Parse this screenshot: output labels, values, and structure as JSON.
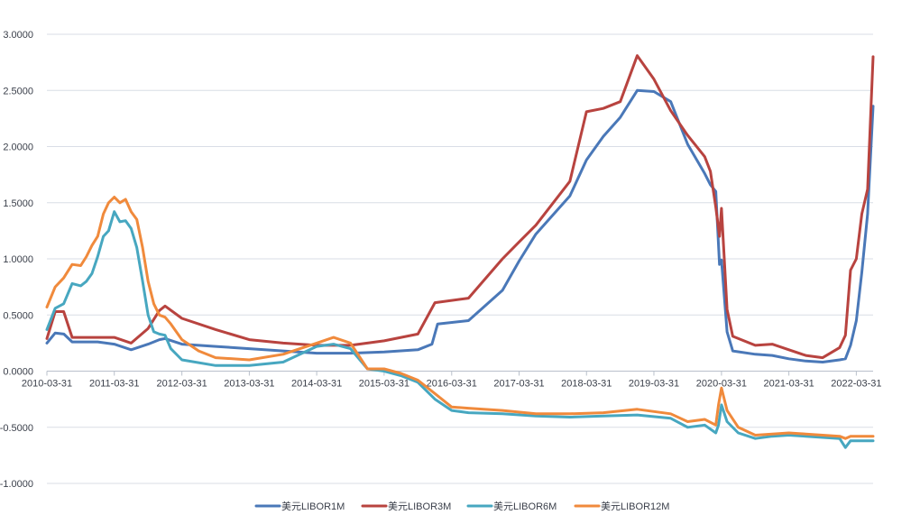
{
  "chart_data": {
    "type": "line",
    "title": "",
    "xlabel": "",
    "ylabel": "",
    "ylim": [
      -1.0,
      3.0
    ],
    "y_ticks": [
      "3.0000",
      "2.5000",
      "2.0000",
      "1.5000",
      "1.0000",
      "0.5000",
      "0.0000",
      "-0.5000",
      "-1.0000"
    ],
    "y_tick_values": [
      3.0,
      2.5,
      2.0,
      1.5,
      1.0,
      0.5,
      0.0,
      -0.5,
      -1.0
    ],
    "xlim": [
      "2010-03-31",
      "2022-06-30"
    ],
    "x_ticks": [
      "2010-03-31",
      "2011-03-31",
      "2012-03-31",
      "2013-03-31",
      "2014-03-31",
      "2015-03-31",
      "2016-03-31",
      "2017-03-31",
      "2018-03-31",
      "2019-03-31",
      "2020-03-31",
      "2021-03-31",
      "2022-03-31"
    ],
    "grid": "horizontal",
    "legend": "bottom",
    "series": [
      {
        "name": "美元LIBOR1M",
        "color": "#4a78b8",
        "points": [
          [
            "2010-03-31",
            0.25
          ],
          [
            "2010-05-15",
            0.34
          ],
          [
            "2010-07-01",
            0.33
          ],
          [
            "2010-08-15",
            0.26
          ],
          [
            "2010-12-31",
            0.26
          ],
          [
            "2011-03-31",
            0.24
          ],
          [
            "2011-06-30",
            0.19
          ],
          [
            "2011-09-30",
            0.24
          ],
          [
            "2011-10-31",
            0.26
          ],
          [
            "2011-11-30",
            0.28
          ],
          [
            "2011-12-31",
            0.29
          ],
          [
            "2012-03-31",
            0.24
          ],
          [
            "2012-09-30",
            0.22
          ],
          [
            "2013-03-31",
            0.2
          ],
          [
            "2013-09-30",
            0.18
          ],
          [
            "2014-03-31",
            0.16
          ],
          [
            "2014-09-30",
            0.16
          ],
          [
            "2015-03-31",
            0.17
          ],
          [
            "2015-09-30",
            0.19
          ],
          [
            "2015-12-15",
            0.24
          ],
          [
            "2016-01-15",
            0.42
          ],
          [
            "2016-06-30",
            0.45
          ],
          [
            "2016-12-31",
            0.72
          ],
          [
            "2017-03-31",
            0.98
          ],
          [
            "2017-06-30",
            1.22
          ],
          [
            "2017-12-31",
            1.56
          ],
          [
            "2018-03-31",
            1.88
          ],
          [
            "2018-06-30",
            2.09
          ],
          [
            "2018-09-30",
            2.26
          ],
          [
            "2018-12-31",
            2.5
          ],
          [
            "2019-03-31",
            2.49
          ],
          [
            "2019-06-30",
            2.4
          ],
          [
            "2019-09-30",
            2.02
          ],
          [
            "2019-12-31",
            1.76
          ],
          [
            "2020-01-31",
            1.66
          ],
          [
            "2020-02-29",
            1.6
          ],
          [
            "2020-03-20",
            0.95
          ],
          [
            "2020-03-31",
            0.99
          ],
          [
            "2020-04-30",
            0.35
          ],
          [
            "2020-05-31",
            0.18
          ],
          [
            "2020-09-30",
            0.15
          ],
          [
            "2020-12-31",
            0.14
          ],
          [
            "2021-03-31",
            0.11
          ],
          [
            "2021-06-30",
            0.09
          ],
          [
            "2021-09-30",
            0.08
          ],
          [
            "2021-12-31",
            0.1
          ],
          [
            "2022-01-31",
            0.11
          ],
          [
            "2022-02-28",
            0.23
          ],
          [
            "2022-03-31",
            0.45
          ],
          [
            "2022-04-30",
            0.88
          ],
          [
            "2022-05-31",
            1.4
          ],
          [
            "2022-06-30",
            2.36
          ]
        ]
      },
      {
        "name": "美元LIBOR3M",
        "color": "#b8433f",
        "points": [
          [
            "2010-03-31",
            0.29
          ],
          [
            "2010-05-15",
            0.53
          ],
          [
            "2010-06-30",
            0.53
          ],
          [
            "2010-08-15",
            0.3
          ],
          [
            "2010-12-31",
            0.3
          ],
          [
            "2011-03-31",
            0.3
          ],
          [
            "2011-06-30",
            0.25
          ],
          [
            "2011-09-30",
            0.38
          ],
          [
            "2011-11-30",
            0.54
          ],
          [
            "2011-12-31",
            0.58
          ],
          [
            "2012-03-31",
            0.47
          ],
          [
            "2012-09-30",
            0.37
          ],
          [
            "2013-03-31",
            0.28
          ],
          [
            "2013-09-30",
            0.25
          ],
          [
            "2014-03-31",
            0.23
          ],
          [
            "2014-09-30",
            0.23
          ],
          [
            "2015-03-31",
            0.27
          ],
          [
            "2015-09-30",
            0.33
          ],
          [
            "2015-12-31",
            0.61
          ],
          [
            "2016-06-30",
            0.65
          ],
          [
            "2016-12-31",
            1.0
          ],
          [
            "2017-03-31",
            1.15
          ],
          [
            "2017-06-30",
            1.3
          ],
          [
            "2017-12-31",
            1.69
          ],
          [
            "2018-03-31",
            2.31
          ],
          [
            "2018-06-30",
            2.34
          ],
          [
            "2018-09-30",
            2.4
          ],
          [
            "2018-12-31",
            2.81
          ],
          [
            "2019-03-31",
            2.6
          ],
          [
            "2019-06-30",
            2.32
          ],
          [
            "2019-09-30",
            2.1
          ],
          [
            "2019-12-31",
            1.91
          ],
          [
            "2020-01-31",
            1.78
          ],
          [
            "2020-02-29",
            1.46
          ],
          [
            "2020-03-20",
            1.2
          ],
          [
            "2020-03-31",
            1.45
          ],
          [
            "2020-04-30",
            0.55
          ],
          [
            "2020-05-31",
            0.31
          ],
          [
            "2020-09-30",
            0.23
          ],
          [
            "2020-12-31",
            0.24
          ],
          [
            "2021-03-31",
            0.19
          ],
          [
            "2021-06-30",
            0.14
          ],
          [
            "2021-09-30",
            0.12
          ],
          [
            "2021-12-31",
            0.21
          ],
          [
            "2022-01-31",
            0.32
          ],
          [
            "2022-02-28",
            0.9
          ],
          [
            "2022-03-31",
            1.0
          ],
          [
            "2022-04-30",
            1.4
          ],
          [
            "2022-05-31",
            1.62
          ],
          [
            "2022-06-30",
            2.8
          ]
        ]
      },
      {
        "name": "美元LIBOR6M",
        "color": "#47a7c0",
        "points": [
          [
            "2010-03-31",
            0.37
          ],
          [
            "2010-05-15",
            0.56
          ],
          [
            "2010-06-30",
            0.6
          ],
          [
            "2010-08-15",
            0.78
          ],
          [
            "2010-09-30",
            0.76
          ],
          [
            "2010-10-31",
            0.8
          ],
          [
            "2010-11-30",
            0.87
          ],
          [
            "2010-12-31",
            1.02
          ],
          [
            "2011-01-31",
            1.2
          ],
          [
            "2011-02-28",
            1.25
          ],
          [
            "2011-03-31",
            1.42
          ],
          [
            "2011-04-30",
            1.33
          ],
          [
            "2011-05-31",
            1.34
          ],
          [
            "2011-06-30",
            1.27
          ],
          [
            "2011-07-31",
            1.1
          ],
          [
            "2011-08-31",
            0.8
          ],
          [
            "2011-09-30",
            0.5
          ],
          [
            "2011-10-31",
            0.35
          ],
          [
            "2011-11-30",
            0.33
          ],
          [
            "2011-12-31",
            0.32
          ],
          [
            "2012-01-31",
            0.2
          ],
          [
            "2012-03-31",
            0.1
          ],
          [
            "2012-09-30",
            0.05
          ],
          [
            "2013-03-31",
            0.05
          ],
          [
            "2013-09-30",
            0.08
          ],
          [
            "2014-03-31",
            0.22
          ],
          [
            "2014-06-30",
            0.24
          ],
          [
            "2014-09-30",
            0.2
          ],
          [
            "2014-12-31",
            0.02
          ],
          [
            "2015-03-31",
            0.0
          ],
          [
            "2015-06-30",
            -0.04
          ],
          [
            "2015-09-30",
            -0.1
          ],
          [
            "2015-12-31",
            -0.25
          ],
          [
            "2016-03-31",
            -0.35
          ],
          [
            "2016-06-30",
            -0.37
          ],
          [
            "2016-12-31",
            -0.38
          ],
          [
            "2017-06-30",
            -0.4
          ],
          [
            "2017-12-31",
            -0.41
          ],
          [
            "2018-06-30",
            -0.4
          ],
          [
            "2018-12-31",
            -0.39
          ],
          [
            "2019-06-30",
            -0.42
          ],
          [
            "2019-09-30",
            -0.5
          ],
          [
            "2019-12-31",
            -0.48
          ],
          [
            "2020-02-29",
            -0.55
          ],
          [
            "2020-03-15",
            -0.48
          ],
          [
            "2020-03-31",
            -0.3
          ],
          [
            "2020-04-30",
            -0.45
          ],
          [
            "2020-06-30",
            -0.55
          ],
          [
            "2020-09-30",
            -0.6
          ],
          [
            "2020-12-31",
            -0.58
          ],
          [
            "2021-03-31",
            -0.57
          ],
          [
            "2021-06-30",
            -0.58
          ],
          [
            "2021-09-30",
            -0.59
          ],
          [
            "2021-12-31",
            -0.6
          ],
          [
            "2022-01-31",
            -0.68
          ],
          [
            "2022-02-28",
            -0.62
          ],
          [
            "2022-06-30",
            -0.62
          ]
        ]
      },
      {
        "name": "美元LIBOR12M",
        "color": "#f08a3c",
        "points": [
          [
            "2010-03-31",
            0.57
          ],
          [
            "2010-05-15",
            0.75
          ],
          [
            "2010-06-30",
            0.83
          ],
          [
            "2010-08-15",
            0.95
          ],
          [
            "2010-09-30",
            0.94
          ],
          [
            "2010-10-31",
            1.02
          ],
          [
            "2010-11-30",
            1.12
          ],
          [
            "2010-12-31",
            1.2
          ],
          [
            "2011-01-31",
            1.4
          ],
          [
            "2011-02-28",
            1.5
          ],
          [
            "2011-03-31",
            1.55
          ],
          [
            "2011-04-30",
            1.5
          ],
          [
            "2011-05-31",
            1.53
          ],
          [
            "2011-06-30",
            1.42
          ],
          [
            "2011-07-31",
            1.35
          ],
          [
            "2011-08-31",
            1.1
          ],
          [
            "2011-09-30",
            0.8
          ],
          [
            "2011-10-31",
            0.6
          ],
          [
            "2011-11-30",
            0.5
          ],
          [
            "2011-12-31",
            0.48
          ],
          [
            "2012-01-31",
            0.42
          ],
          [
            "2012-03-31",
            0.28
          ],
          [
            "2012-06-30",
            0.18
          ],
          [
            "2012-09-30",
            0.12
          ],
          [
            "2013-03-31",
            0.1
          ],
          [
            "2013-09-30",
            0.15
          ],
          [
            "2014-03-31",
            0.25
          ],
          [
            "2014-06-30",
            0.3
          ],
          [
            "2014-09-30",
            0.25
          ],
          [
            "2014-12-31",
            0.02
          ],
          [
            "2015-03-31",
            0.02
          ],
          [
            "2015-06-30",
            -0.02
          ],
          [
            "2015-09-30",
            -0.08
          ],
          [
            "2015-12-31",
            -0.2
          ],
          [
            "2016-03-31",
            -0.32
          ],
          [
            "2016-06-30",
            -0.33
          ],
          [
            "2016-12-31",
            -0.35
          ],
          [
            "2017-06-30",
            -0.38
          ],
          [
            "2017-12-31",
            -0.38
          ],
          [
            "2018-06-30",
            -0.37
          ],
          [
            "2018-12-31",
            -0.34
          ],
          [
            "2019-06-30",
            -0.38
          ],
          [
            "2019-09-30",
            -0.45
          ],
          [
            "2019-12-31",
            -0.43
          ],
          [
            "2020-02-29",
            -0.48
          ],
          [
            "2020-03-15",
            -0.3
          ],
          [
            "2020-03-31",
            -0.15
          ],
          [
            "2020-04-30",
            -0.35
          ],
          [
            "2020-06-30",
            -0.5
          ],
          [
            "2020-09-30",
            -0.57
          ],
          [
            "2020-12-31",
            -0.56
          ],
          [
            "2021-03-31",
            -0.55
          ],
          [
            "2021-06-30",
            -0.56
          ],
          [
            "2021-09-30",
            -0.57
          ],
          [
            "2021-12-31",
            -0.58
          ],
          [
            "2022-01-31",
            -0.6
          ],
          [
            "2022-02-28",
            -0.58
          ],
          [
            "2022-06-30",
            -0.58
          ]
        ]
      }
    ]
  }
}
